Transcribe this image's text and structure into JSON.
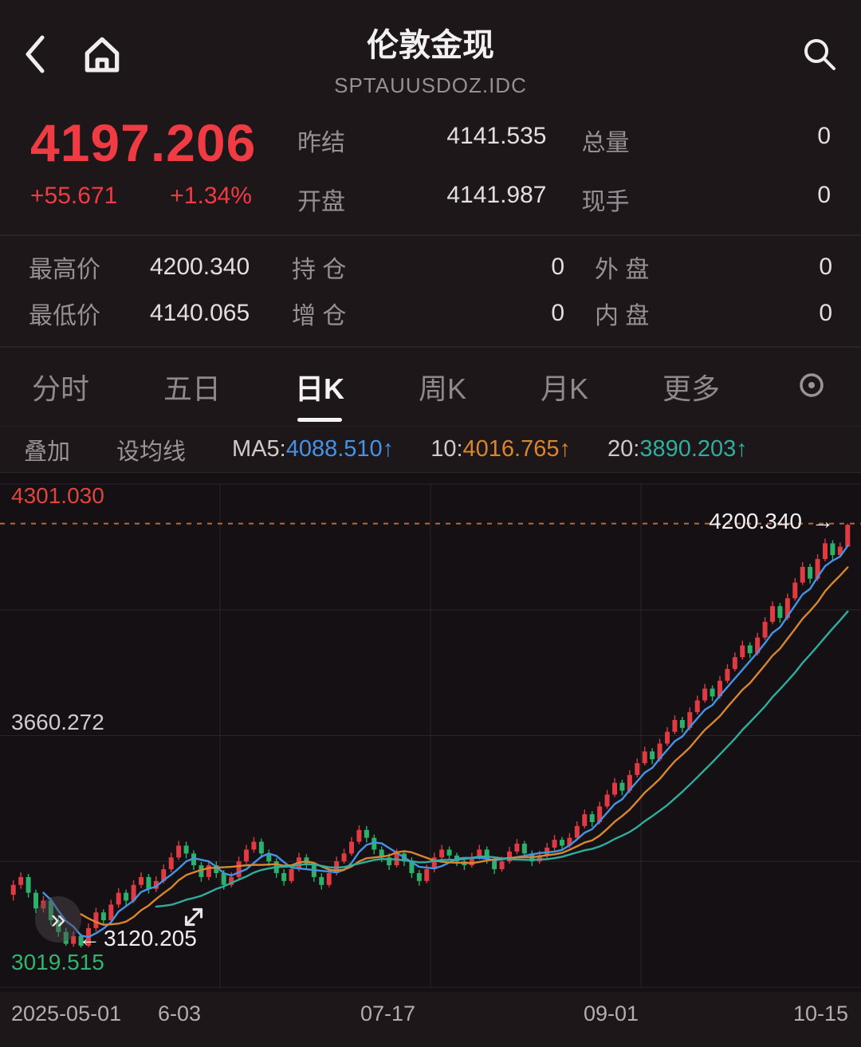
{
  "header": {
    "title": "伦敦金现",
    "subtitle": "SPTAUUSDOZ.IDC"
  },
  "quote": {
    "price": "4197.206",
    "change": "+55.671",
    "change_pct": "+1.34%",
    "prev_settle_label": "昨结",
    "prev_settle": "4141.535",
    "open_label": "开盘",
    "open": "4141.987",
    "volume_label": "总量",
    "volume": "0",
    "cur_lot_label": "现手",
    "cur_lot": "0",
    "high_label": "最高价",
    "high": "4200.340",
    "oi_label": "持 仓",
    "oi": "0",
    "outer_label": "外 盘",
    "outer": "0",
    "low_label": "最低价",
    "low": "4140.065",
    "oi_chg_label": "增 仓",
    "oi_chg": "0",
    "inner_label": "内 盘",
    "inner": "0"
  },
  "tabs": [
    {
      "label": "分时"
    },
    {
      "label": "五日"
    },
    {
      "label": "日K"
    },
    {
      "label": "周K"
    },
    {
      "label": "月K"
    },
    {
      "label": "更多"
    }
  ],
  "ma_bar": {
    "overlay": "叠加",
    "set_ma": "设均线",
    "ma5_prefix": "MA5:",
    "ma5_value": "4088.510↑",
    "ma10_prefix": "10:",
    "ma10_value": "4016.765↑",
    "ma20_prefix": "20:",
    "ma20_value": "3890.203↑"
  },
  "chart": {
    "y_top_label": "4301.030",
    "y_mid_label": "3660.272",
    "y_bottom_label": "3019.515",
    "high_marker_label": "4200.340",
    "high_marker_arrow": "→",
    "low_marker_label": "3120.205",
    "low_marker_arrow": "←",
    "ff_glyph": "»",
    "x_labels": [
      "2025-05-01",
      "6-03",
      "07-17",
      "09-01",
      "10-15"
    ]
  },
  "colors": {
    "up_red": "#e03b42",
    "down_green": "#2bb169",
    "accent_price_red": "#ef3b43",
    "ma5_blue": "#4593e6",
    "ma10_orange": "#d8862f",
    "ma20_teal": "#2fae9e",
    "high_dashed_line": "#c2652e"
  },
  "chart_data": {
    "type": "candlestick",
    "title": "伦敦金现 日K",
    "y_range": [
      3019.515,
      4301.03
    ],
    "grid_levels": [
      4301.03,
      3980.651,
      3660.272,
      3339.894,
      3019.515
    ],
    "high_line": 4200.34,
    "low_marker": 3120.205,
    "x_labels": [
      "2025-05-01",
      "6-03",
      "07-17",
      "09-01",
      "10-15"
    ],
    "ma_periods": [
      5,
      10,
      20
    ],
    "ma_colors": [
      "#4593e6",
      "#d8862f",
      "#2fae9e"
    ],
    "up_color": "#e03b42",
    "down_color": "#2bb169",
    "candles": [
      [
        3255,
        3292,
        3240,
        3280
      ],
      [
        3280,
        3312,
        3270,
        3300
      ],
      [
        3300,
        3308,
        3248,
        3260
      ],
      [
        3260,
        3268,
        3208,
        3220
      ],
      [
        3220,
        3252,
        3210,
        3240
      ],
      [
        3240,
        3248,
        3178,
        3190
      ],
      [
        3190,
        3198,
        3148,
        3160
      ],
      [
        3160,
        3170,
        3125,
        3130
      ],
      [
        3130,
        3162,
        3122,
        3150
      ],
      [
        3150,
        3156,
        3120.2,
        3125
      ],
      [
        3125,
        3182,
        3121,
        3170
      ],
      [
        3170,
        3222,
        3162,
        3210
      ],
      [
        3210,
        3218,
        3178,
        3190
      ],
      [
        3190,
        3242,
        3184,
        3230
      ],
      [
        3230,
        3272,
        3222,
        3260
      ],
      [
        3260,
        3268,
        3228,
        3240
      ],
      [
        3240,
        3292,
        3234,
        3280
      ],
      [
        3280,
        3312,
        3272,
        3300
      ],
      [
        3300,
        3308,
        3258,
        3270
      ],
      [
        3270,
        3302,
        3262,
        3290
      ],
      [
        3290,
        3332,
        3284,
        3320
      ],
      [
        3320,
        3362,
        3312,
        3350
      ],
      [
        3350,
        3392,
        3344,
        3380
      ],
      [
        3380,
        3390,
        3348,
        3360
      ],
      [
        3360,
        3368,
        3318,
        3330
      ],
      [
        3330,
        3338,
        3288,
        3300
      ],
      [
        3300,
        3342,
        3292,
        3330
      ],
      [
        3330,
        3340,
        3298,
        3310
      ],
      [
        3310,
        3318,
        3268,
        3280
      ],
      [
        3280,
        3312,
        3274,
        3300
      ],
      [
        3300,
        3352,
        3294,
        3340
      ],
      [
        3340,
        3382,
        3334,
        3370
      ],
      [
        3370,
        3402,
        3362,
        3390
      ],
      [
        3390,
        3398,
        3348,
        3360
      ],
      [
        3360,
        3370,
        3328,
        3340
      ],
      [
        3340,
        3348,
        3298,
        3310
      ],
      [
        3310,
        3320,
        3278,
        3290
      ],
      [
        3290,
        3332,
        3284,
        3320
      ],
      [
        3320,
        3362,
        3314,
        3350
      ],
      [
        3350,
        3358,
        3318,
        3330
      ],
      [
        3330,
        3338,
        3288,
        3300
      ],
      [
        3300,
        3310,
        3268,
        3280
      ],
      [
        3280,
        3322,
        3274,
        3310
      ],
      [
        3310,
        3352,
        3304,
        3340
      ],
      [
        3340,
        3372,
        3334,
        3360
      ],
      [
        3360,
        3402,
        3354,
        3390
      ],
      [
        3390,
        3432,
        3384,
        3420
      ],
      [
        3420,
        3430,
        3388,
        3400
      ],
      [
        3400,
        3408,
        3358,
        3370
      ],
      [
        3370,
        3378,
        3338,
        3350
      ],
      [
        3350,
        3360,
        3318,
        3330
      ],
      [
        3330,
        3372,
        3324,
        3360
      ],
      [
        3360,
        3368,
        3328,
        3340
      ],
      [
        3340,
        3350,
        3298,
        3310
      ],
      [
        3310,
        3318,
        3278,
        3290
      ],
      [
        3290,
        3332,
        3284,
        3320
      ],
      [
        3320,
        3362,
        3312,
        3350
      ],
      [
        3350,
        3382,
        3344,
        3370
      ],
      [
        3370,
        3378,
        3342,
        3355
      ],
      [
        3355,
        3362,
        3328,
        3340
      ],
      [
        3340,
        3348,
        3318,
        3330
      ],
      [
        3330,
        3362,
        3324,
        3350
      ],
      [
        3350,
        3382,
        3344,
        3370
      ],
      [
        3370,
        3378,
        3334,
        3345
      ],
      [
        3345,
        3352,
        3308,
        3320
      ],
      [
        3320,
        3352,
        3314,
        3340
      ],
      [
        3340,
        3377,
        3334,
        3365
      ],
      [
        3365,
        3397,
        3358,
        3385
      ],
      [
        3385,
        3392,
        3348,
        3360
      ],
      [
        3360,
        3368,
        3328,
        3340
      ],
      [
        3340,
        3367,
        3334,
        3355
      ],
      [
        3355,
        3387,
        3348,
        3375
      ],
      [
        3375,
        3407,
        3368,
        3395
      ],
      [
        3395,
        3402,
        3368,
        3380
      ],
      [
        3380,
        3412,
        3374,
        3400
      ],
      [
        3400,
        3442,
        3394,
        3430
      ],
      [
        3430,
        3472,
        3424,
        3460
      ],
      [
        3460,
        3468,
        3428,
        3440
      ],
      [
        3440,
        3492,
        3434,
        3480
      ],
      [
        3480,
        3522,
        3474,
        3510
      ],
      [
        3510,
        3552,
        3504,
        3540
      ],
      [
        3540,
        3548,
        3508,
        3520
      ],
      [
        3520,
        3572,
        3514,
        3560
      ],
      [
        3560,
        3602,
        3554,
        3590
      ],
      [
        3590,
        3632,
        3584,
        3620
      ],
      [
        3620,
        3628,
        3588,
        3600
      ],
      [
        3600,
        3652,
        3594,
        3640
      ],
      [
        3640,
        3682,
        3634,
        3670
      ],
      [
        3670,
        3712,
        3664,
        3700
      ],
      [
        3700,
        3708,
        3668,
        3680
      ],
      [
        3680,
        3732,
        3674,
        3720
      ],
      [
        3720,
        3762,
        3714,
        3750
      ],
      [
        3750,
        3792,
        3744,
        3780
      ],
      [
        3780,
        3788,
        3748,
        3760
      ],
      [
        3760,
        3812,
        3754,
        3800
      ],
      [
        3800,
        3842,
        3794,
        3830
      ],
      [
        3830,
        3872,
        3824,
        3860
      ],
      [
        3860,
        3902,
        3854,
        3890
      ],
      [
        3890,
        3898,
        3858,
        3870
      ],
      [
        3870,
        3922,
        3864,
        3910
      ],
      [
        3910,
        3962,
        3904,
        3950
      ],
      [
        3950,
        4002,
        3944,
        3990
      ],
      [
        3990,
        3998,
        3948,
        3960
      ],
      [
        3960,
        4022,
        3954,
        4010
      ],
      [
        4010,
        4062,
        4004,
        4050
      ],
      [
        4050,
        4102,
        4044,
        4090
      ],
      [
        4090,
        4098,
        4048,
        4060
      ],
      [
        4060,
        4122,
        4054,
        4110
      ],
      [
        4110,
        4162,
        4104,
        4150
      ],
      [
        4150,
        4158,
        4108,
        4120
      ],
      [
        4120,
        4152,
        4114,
        4141.5
      ],
      [
        4141.99,
        4200.34,
        4140.07,
        4197.21
      ]
    ]
  }
}
